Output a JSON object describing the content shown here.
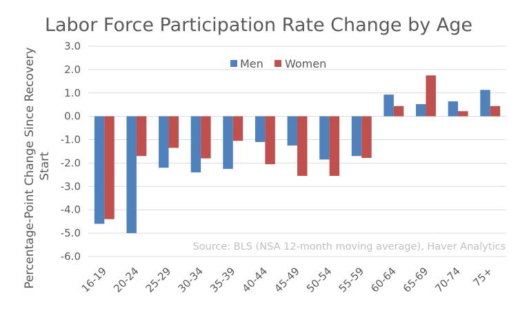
{
  "chart_data": {
    "type": "bar",
    "title": "Labor Force Participation Rate Change by Age",
    "ylabel": "Percentage-Point Change Since Recovery Start",
    "ylabel_lines": [
      "Percentage-Point Change Since Recovery",
      "Start"
    ],
    "xlabel": "",
    "ylim": [
      -6.0,
      3.0
    ],
    "ytick_labels": [
      "3.0",
      "2.0",
      "1.0",
      "0.0",
      "-1.0",
      "-2.0",
      "-3.0",
      "-4.0",
      "-5.0",
      "-6.0"
    ],
    "grid": true,
    "legend_position": "top-center",
    "annotation": "Source: BLS (NSA 12-month moving average), Haver Analytics",
    "categories": [
      "16-19",
      "20-24",
      "25-29",
      "30-34",
      "35-39",
      "40-44",
      "45-49",
      "50-54",
      "55-59",
      "60-64",
      "65-69",
      "70-74",
      "75+"
    ],
    "series": [
      {
        "name": "Men",
        "color": "#4f81bd",
        "values": [
          -4.6,
          -5.0,
          -2.2,
          -2.4,
          -2.25,
          -1.1,
          -1.25,
          -1.85,
          -1.7,
          0.93,
          0.52,
          0.64,
          1.13
        ]
      },
      {
        "name": "Women",
        "color": "#c0504d",
        "values": [
          -4.4,
          -1.7,
          -1.35,
          -1.8,
          -1.05,
          -2.05,
          -2.55,
          -2.55,
          -1.78,
          0.44,
          1.75,
          0.22,
          0.44
        ]
      }
    ]
  }
}
